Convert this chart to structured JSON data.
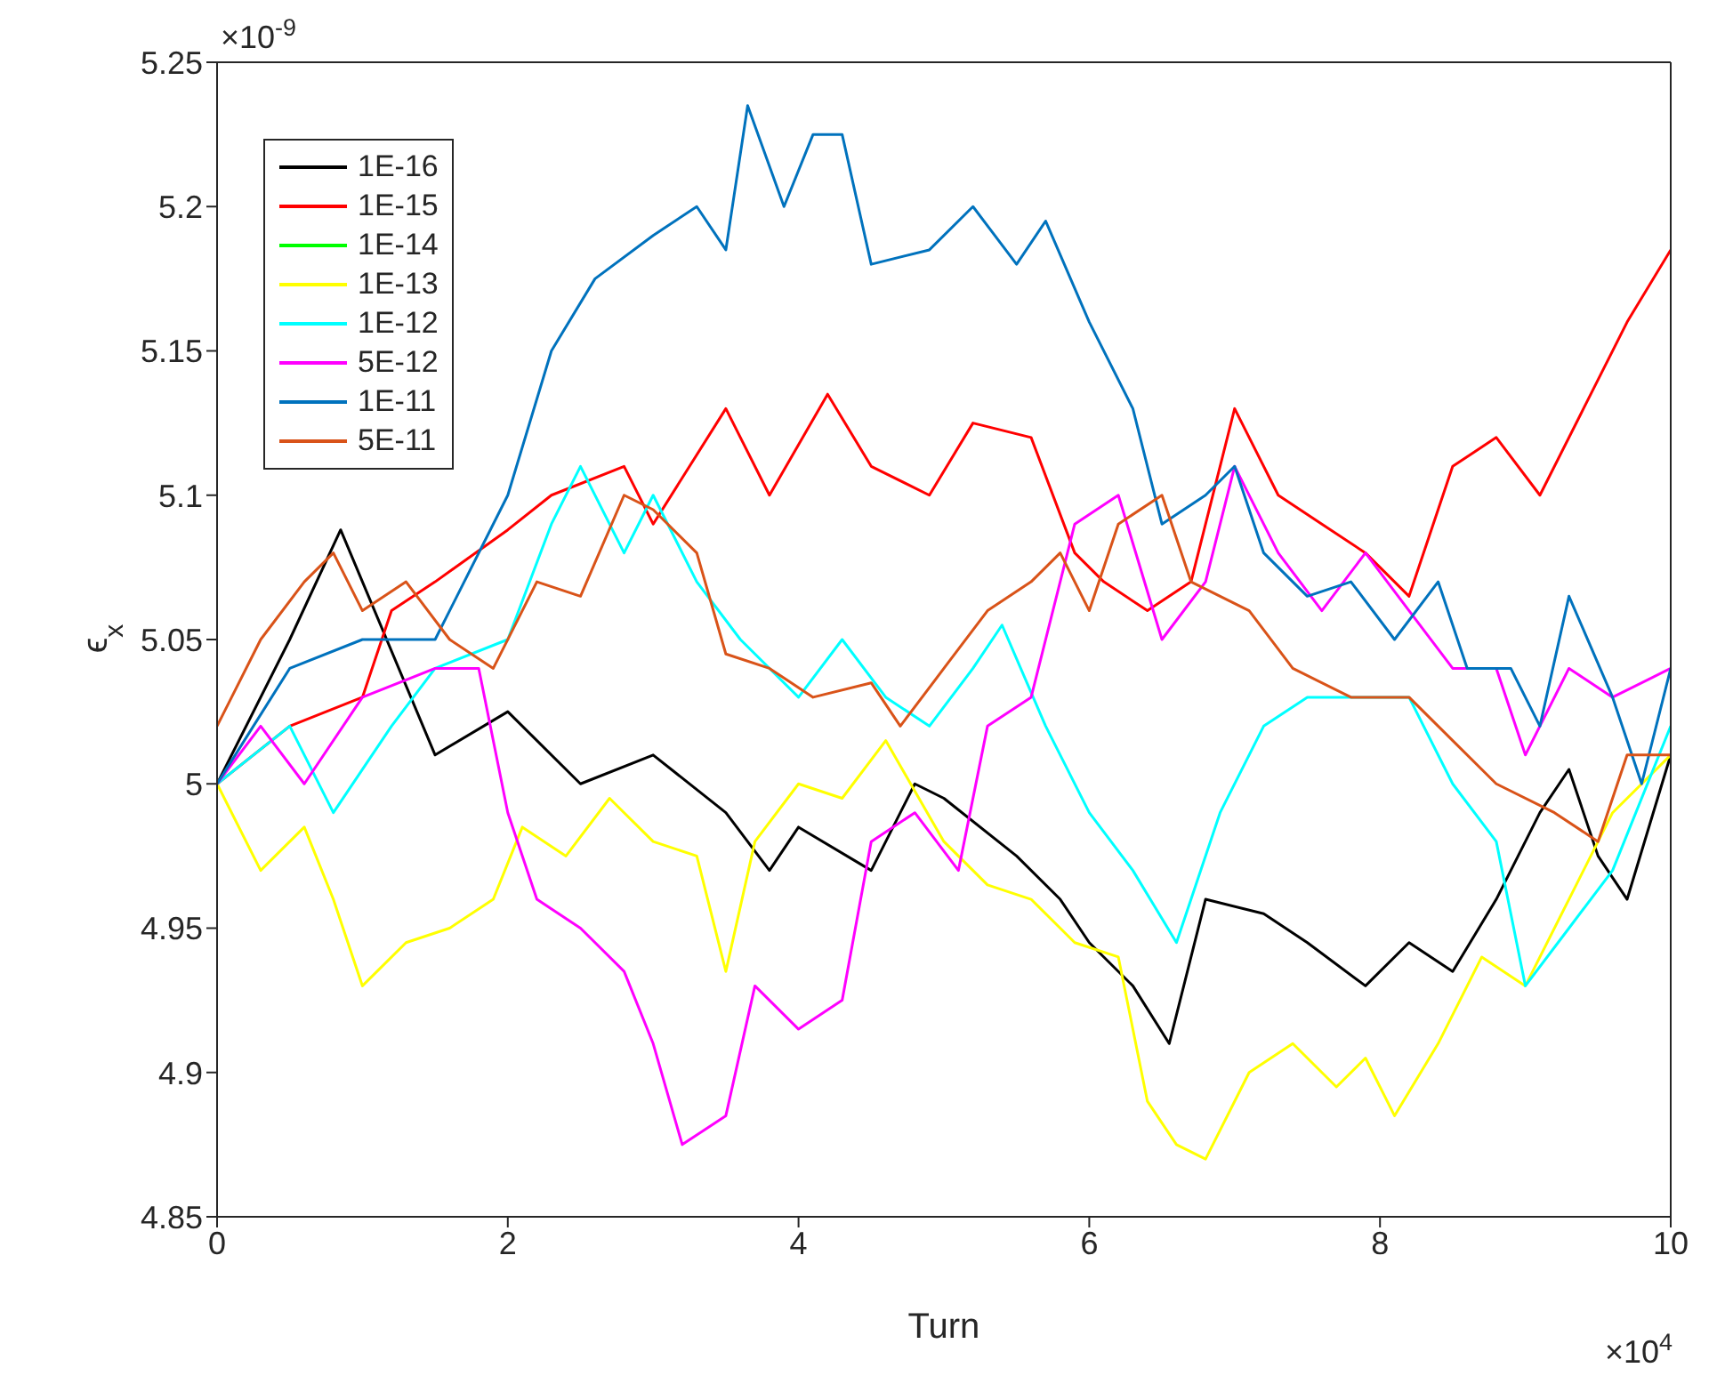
{
  "chart_data": {
    "type": "line",
    "xlabel": "Turn",
    "ylabel": "ϵ$_{x}$",
    "annotations": [
      "×10$^{-9}$",
      "×10$^{4}$"
    ],
    "xlim": [
      0,
      10
    ],
    "xticks": [
      0,
      2,
      4,
      6,
      8,
      10
    ],
    "ylim": [
      4.85,
      5.25
    ],
    "yticks": [
      4.85,
      4.9,
      4.95,
      5,
      5.05,
      5.1,
      5.15,
      5.2,
      5.25
    ],
    "legend": "top left",
    "grid": false,
    "marker": "none",
    "line_style": "solid",
    "series": [
      {
        "name": "1E-16",
        "color": "#000000",
        "x": [
          0,
          0.5,
          0.85,
          1.5,
          2,
          2.5,
          3,
          3.5,
          3.8,
          4,
          4.5,
          4.8,
          5,
          5.5,
          5.8,
          6,
          6.3,
          6.55,
          6.8,
          7.2,
          7.5,
          7.9,
          8.2,
          8.5,
          8.8,
          9.1,
          9.3,
          9.5,
          9.7,
          10
        ],
        "values": [
          5,
          5.05,
          5.088,
          5.01,
          5.025,
          5,
          5.01,
          4.99,
          4.97,
          4.985,
          4.97,
          5,
          4.995,
          4.975,
          4.96,
          4.945,
          4.93,
          4.91,
          4.96,
          4.955,
          4.945,
          4.93,
          4.945,
          4.935,
          4.96,
          4.99,
          5.005,
          4.975,
          4.96,
          5.01
        ]
      },
      {
        "name": "1E-15",
        "color": "#ff0000",
        "x": [
          0,
          0.5,
          1,
          1.2,
          1.5,
          2,
          2.3,
          2.8,
          3,
          3.5,
          3.8,
          4.2,
          4.5,
          4.9,
          5.2,
          5.6,
          5.9,
          6.1,
          6.4,
          6.7,
          7,
          7.3,
          7.6,
          7.9,
          8.2,
          8.5,
          8.8,
          9.1,
          9.4,
          9.7,
          10
        ],
        "values": [
          5,
          5.02,
          5.03,
          5.06,
          5.07,
          5.088,
          5.1,
          5.11,
          5.09,
          5.13,
          5.1,
          5.135,
          5.11,
          5.1,
          5.125,
          5.12,
          5.08,
          5.07,
          5.06,
          5.07,
          5.13,
          5.1,
          5.09,
          5.08,
          5.065,
          5.11,
          5.12,
          5.1,
          5.13,
          5.16,
          5.185
        ]
      },
      {
        "name": "1E-14",
        "color": "#00ff00"
      },
      {
        "name": "1E-13",
        "color": "#ffff00",
        "x": [
          0,
          0.3,
          0.6,
          0.8,
          1,
          1.3,
          1.6,
          1.9,
          2.1,
          2.4,
          2.7,
          3,
          3.3,
          3.5,
          3.7,
          4,
          4.3,
          4.6,
          5,
          5.3,
          5.6,
          5.9,
          6.2,
          6.4,
          6.6,
          6.8,
          7.1,
          7.4,
          7.7,
          7.9,
          8.1,
          8.4,
          8.7,
          9,
          9.3,
          9.6,
          10
        ],
        "values": [
          5,
          4.97,
          4.985,
          4.96,
          4.93,
          4.945,
          4.95,
          4.96,
          4.985,
          4.975,
          4.995,
          4.98,
          4.975,
          4.935,
          4.98,
          5,
          4.995,
          5.015,
          4.98,
          4.965,
          4.96,
          4.945,
          4.94,
          4.89,
          4.875,
          4.87,
          4.9,
          4.91,
          4.895,
          4.905,
          4.885,
          4.91,
          4.94,
          4.93,
          4.96,
          4.99,
          5.01
        ]
      },
      {
        "name": "1E-12",
        "color": "#00ffff",
        "x": [
          0,
          0.5,
          0.8,
          1.2,
          1.5,
          2,
          2.3,
          2.5,
          2.8,
          3,
          3.3,
          3.6,
          4,
          4.3,
          4.6,
          4.9,
          5.2,
          5.4,
          5.7,
          6,
          6.3,
          6.6,
          6.9,
          7.2,
          7.5,
          7.8,
          8.2,
          8.5,
          8.8,
          9,
          9.3,
          9.6,
          10
        ],
        "values": [
          5,
          5.02,
          4.99,
          5.02,
          5.04,
          5.05,
          5.09,
          5.11,
          5.08,
          5.1,
          5.07,
          5.05,
          5.03,
          5.05,
          5.03,
          5.02,
          5.04,
          5.055,
          5.02,
          4.99,
          4.97,
          4.945,
          4.99,
          5.02,
          5.03,
          5.03,
          5.03,
          5,
          4.98,
          4.93,
          4.95,
          4.97,
          5.02
        ]
      },
      {
        "name": "5E-12",
        "color": "#ff00ff",
        "x": [
          0,
          0.3,
          0.6,
          1,
          1.5,
          1.8,
          2,
          2.2,
          2.5,
          2.8,
          3,
          3.2,
          3.5,
          3.7,
          4,
          4.3,
          4.5,
          4.8,
          5.1,
          5.3,
          5.6,
          5.9,
          6.2,
          6.5,
          6.8,
          7,
          7.3,
          7.6,
          7.9,
          8.2,
          8.5,
          8.8,
          9,
          9.3,
          9.6,
          10
        ],
        "values": [
          5,
          5.02,
          5,
          5.03,
          5.04,
          5.04,
          4.99,
          4.96,
          4.95,
          4.935,
          4.91,
          4.875,
          4.885,
          4.93,
          4.915,
          4.925,
          4.98,
          4.99,
          4.97,
          5.02,
          5.03,
          5.09,
          5.1,
          5.05,
          5.07,
          5.11,
          5.08,
          5.06,
          5.08,
          5.06,
          5.04,
          5.04,
          5.01,
          5.04,
          5.03,
          5.04
        ]
      },
      {
        "name": "1E-11",
        "color": "#0072bd",
        "x": [
          0,
          0.5,
          1,
          1.5,
          2,
          2.3,
          2.6,
          3,
          3.3,
          3.5,
          3.65,
          3.9,
          4.1,
          4.3,
          4.5,
          4.9,
          5.2,
          5.5,
          5.7,
          6,
          6.3,
          6.5,
          6.8,
          7,
          7.2,
          7.5,
          7.8,
          8.1,
          8.4,
          8.6,
          8.9,
          9.1,
          9.3,
          9.6,
          9.8,
          10
        ],
        "values": [
          5,
          5.04,
          5.05,
          5.05,
          5.1,
          5.15,
          5.175,
          5.19,
          5.2,
          5.185,
          5.235,
          5.2,
          5.225,
          5.225,
          5.18,
          5.185,
          5.2,
          5.18,
          5.195,
          5.16,
          5.13,
          5.09,
          5.1,
          5.11,
          5.08,
          5.065,
          5.07,
          5.05,
          5.07,
          5.04,
          5.04,
          5.02,
          5.065,
          5.03,
          5,
          5.04
        ]
      },
      {
        "name": "5E-11",
        "color": "#d95319",
        "x": [
          0,
          0.3,
          0.6,
          0.8,
          1,
          1.3,
          1.6,
          1.9,
          2.2,
          2.5,
          2.8,
          3,
          3.3,
          3.5,
          3.8,
          4.1,
          4.5,
          4.7,
          5,
          5.3,
          5.6,
          5.8,
          6,
          6.2,
          6.5,
          6.7,
          7.1,
          7.4,
          7.8,
          8.2,
          8.5,
          8.8,
          9.2,
          9.5,
          9.7,
          10
        ],
        "values": [
          5.02,
          5.05,
          5.07,
          5.08,
          5.06,
          5.07,
          5.05,
          5.04,
          5.07,
          5.065,
          5.1,
          5.095,
          5.08,
          5.045,
          5.04,
          5.03,
          5.035,
          5.02,
          5.04,
          5.06,
          5.07,
          5.08,
          5.06,
          5.09,
          5.1,
          5.07,
          5.06,
          5.04,
          5.03,
          5.03,
          5.015,
          5,
          4.99,
          4.98,
          5.01,
          5.01
        ]
      }
    ]
  }
}
